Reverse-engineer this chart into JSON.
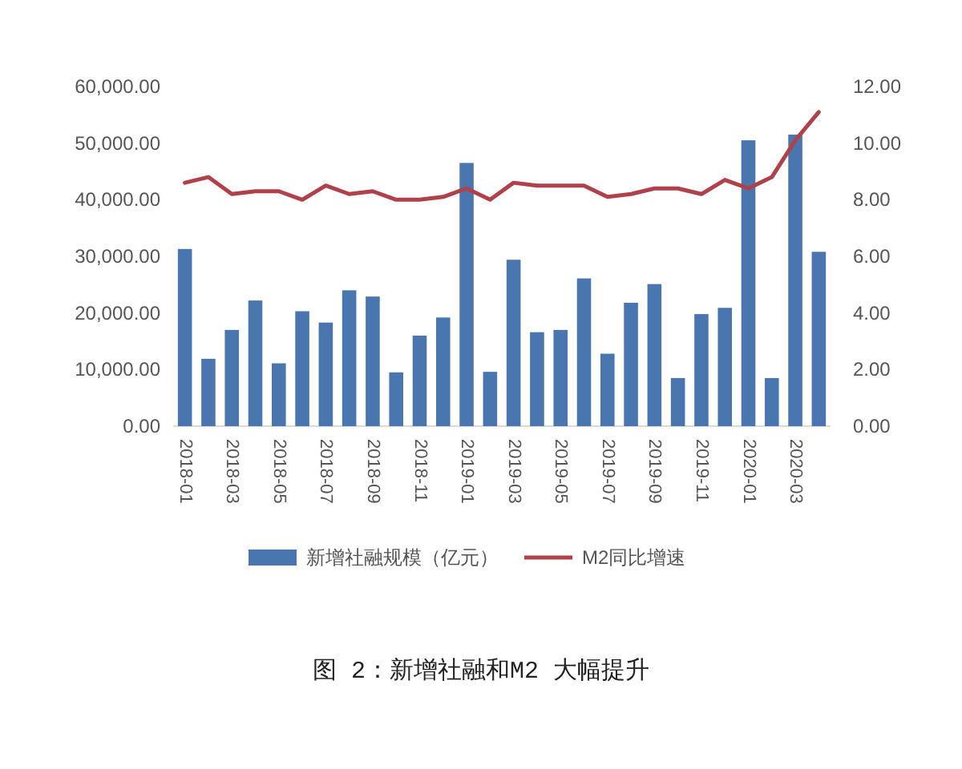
{
  "chart_data": {
    "type": "bar",
    "title": "图 2：新增社融和M2 大幅提升",
    "categories": [
      "2018-01",
      null,
      "2018-03",
      null,
      "2018-05",
      null,
      "2018-07",
      null,
      "2018-09",
      null,
      "2018-11",
      null,
      "2019-01",
      null,
      "2019-03",
      null,
      "2019-05",
      null,
      "2019-07",
      null,
      "2019-09",
      null,
      "2019-11",
      null,
      "2020-01",
      null,
      "2020-03",
      null
    ],
    "series": [
      {
        "name": "新增社融规模（亿元）",
        "color": "#4a76b0",
        "values": [
          31300,
          11900,
          17000,
          22200,
          11100,
          20300,
          18300,
          24000,
          22900,
          9500,
          16000,
          19200,
          46500,
          9600,
          29400,
          16600,
          17000,
          26100,
          12800,
          21800,
          25100,
          8500,
          19800,
          20900,
          50500,
          8500,
          51500,
          30800
        ]
      },
      {
        "name": "M2同比增速",
        "type": "line",
        "axis": "y2",
        "color": "#b0404a",
        "values": [
          8.6,
          8.8,
          8.2,
          8.3,
          8.3,
          8.0,
          8.5,
          8.2,
          8.3,
          8.0,
          8.0,
          8.1,
          8.4,
          8.0,
          8.6,
          8.5,
          8.5,
          8.5,
          8.1,
          8.2,
          8.4,
          8.4,
          8.2,
          8.7,
          8.4,
          8.8,
          10.1,
          11.1
        ]
      }
    ],
    "ylim": [
      0,
      60000
    ],
    "yticks": [
      {
        "value": 0,
        "label": "0.00"
      },
      {
        "value": 10000,
        "label": "10,000.00"
      },
      {
        "value": 20000,
        "label": "20,000.00"
      },
      {
        "value": 30000,
        "label": "30,000.00"
      },
      {
        "value": 40000,
        "label": "40,000.00"
      },
      {
        "value": 50000,
        "label": "50,000.00"
      },
      {
        "value": 60000,
        "label": "60,000.00"
      }
    ],
    "y2lim": [
      0,
      12
    ],
    "y2ticks": [
      {
        "value": 0,
        "label": "0.00"
      },
      {
        "value": 2,
        "label": "2.00"
      },
      {
        "value": 4,
        "label": "4.00"
      },
      {
        "value": 6,
        "label": "6.00"
      },
      {
        "value": 8,
        "label": "8.00"
      },
      {
        "value": 10,
        "label": "10.00"
      },
      {
        "value": 12,
        "label": "12.00"
      }
    ],
    "grid": false,
    "legend": "bottom"
  }
}
